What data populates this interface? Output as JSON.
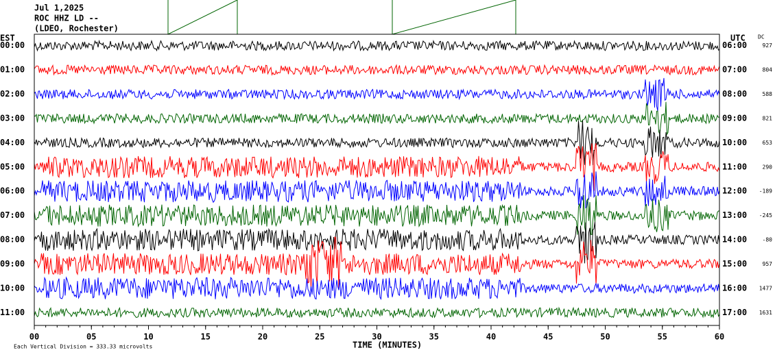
{
  "header": {
    "lines": [
      "Jul 1,2025",
      "ROC HHZ LD --",
      "(LDEO, Rochester)"
    ]
  },
  "left_label": "EST",
  "right_label": "UTC",
  "dc_label": "DC",
  "rows": [
    {
      "est": "00:00",
      "utc": "06:00",
      "dc": "927",
      "color": "#000000"
    },
    {
      "est": "01:00",
      "utc": "07:00",
      "dc": "804",
      "color": "#ff0000"
    },
    {
      "est": "02:00",
      "utc": "08:00",
      "dc": "588",
      "color": "#0000ff"
    },
    {
      "est": "03:00",
      "utc": "09:00",
      "dc": "821",
      "color": "#006400"
    },
    {
      "est": "04:00",
      "utc": "10:00",
      "dc": "653",
      "color": "#000000"
    },
    {
      "est": "05:00",
      "utc": "11:00",
      "dc": "290",
      "color": "#ff0000"
    },
    {
      "est": "06:00",
      "utc": "12:00",
      "dc": "-189",
      "color": "#0000ff"
    },
    {
      "est": "07:00",
      "utc": "13:00",
      "dc": "-245",
      "color": "#006400"
    },
    {
      "est": "08:00",
      "utc": "14:00",
      "dc": "-80",
      "color": "#000000"
    },
    {
      "est": "09:00",
      "utc": "15:00",
      "dc": "957",
      "color": "#ff0000"
    },
    {
      "est": "10:00",
      "utc": "16:00",
      "dc": "1477",
      "color": "#0000ff"
    },
    {
      "est": "11:00",
      "utc": "17:00",
      "dc": "1631",
      "color": "#006400"
    }
  ],
  "x_axis": {
    "ticks": [
      "00",
      "05",
      "10",
      "15",
      "20",
      "25",
      "30",
      "35",
      "40",
      "45",
      "50",
      "55",
      "60"
    ],
    "title": "TIME (MINUTES)"
  },
  "footnote": "Each Vertical Division = 333.33 microvolts"
}
